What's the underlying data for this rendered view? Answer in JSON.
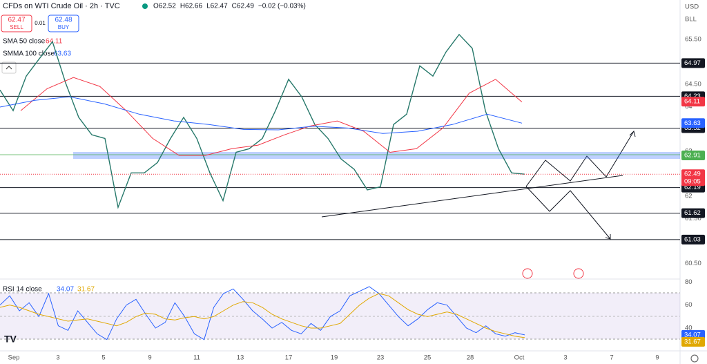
{
  "chart_data": {
    "type": "line",
    "title": "CFDs on WTI Crude Oil · 2h · TVC",
    "ohlc": [
      "O62.52",
      "H62.66",
      "L62.47",
      "C62.49",
      "−0.02 (−0.03%)"
    ],
    "sell": {
      "price": "62.47",
      "label": "SELL"
    },
    "buy": {
      "price": "62.48",
      "label": "BUY"
    },
    "spread": "0.01",
    "currency": "USD",
    "unit": "BLL",
    "ylim": [
      60.18,
      66.38
    ],
    "yticks": [
      {
        "value": 60.5,
        "label": "60.50"
      },
      {
        "value": 61.5,
        "label": "61.50"
      },
      62,
      63,
      64,
      {
        "value": 64.5,
        "label": "64.50"
      },
      {
        "value": 65.5,
        "label": "65.50"
      }
    ],
    "levels": [
      {
        "value": 64.97,
        "label": "64.97"
      },
      {
        "value": 64.23,
        "label": "64.23"
      },
      {
        "value": 63.52,
        "label": "63.52"
      },
      {
        "value": 62.19,
        "label": "62.19"
      },
      {
        "value": 61.62,
        "label": "61.62"
      },
      {
        "value": 61.03,
        "label": "61.03"
      }
    ],
    "zone": {
      "value": 62.91,
      "label": "62.91",
      "color": "#2962ff"
    },
    "last": {
      "value": 62.49,
      "label": "62.49",
      "countdown": "09:05",
      "color": "#f23645"
    },
    "price": {
      "color": "#26786a",
      "values": [
        64.37,
        63.91,
        64.68,
        65.07,
        65.45,
        64.53,
        63.76,
        63.37,
        63.29,
        61.75,
        62.52,
        62.52,
        62.75,
        63.29,
        63.76,
        63.29,
        62.52,
        61.9,
        62.98,
        63.06,
        63.29,
        63.91,
        64.61,
        64.22,
        63.6,
        63.29,
        62.83,
        62.6,
        62.14,
        62.21,
        63.6,
        63.83,
        64.91,
        64.68,
        65.22,
        65.61,
        65.3,
        63.91,
        63.06,
        62.52,
        62.49
      ]
    },
    "series": [
      {
        "name": "SMA 50 close",
        "color": "#f23645",
        "last": {
          "value": 64.11,
          "label": "64.11"
        },
        "values": [
          63.91,
          64.4,
          64.65,
          64.45,
          63.91,
          63.29,
          62.91,
          62.91,
          63.06,
          63.14,
          63.37,
          63.57,
          63.68,
          63.45,
          62.98,
          63.06,
          63.52,
          64.3,
          64.61,
          64.1
        ]
      },
      {
        "name": "SMMA 100 close",
        "color": "#2962ff",
        "last": {
          "value": 63.63,
          "label": "63.63"
        },
        "values": [
          63.99,
          64.14,
          64.22,
          64.06,
          63.83,
          63.68,
          63.6,
          63.49,
          63.48,
          63.56,
          63.52,
          63.4,
          63.45,
          63.6,
          63.83,
          63.63
        ]
      }
    ],
    "rsi": {
      "name": "RSI 14 close",
      "ylim": [
        22,
        82
      ],
      "yticks": [
        40,
        60,
        80
      ],
      "series": [
        {
          "color": "#2962ff",
          "last": {
            "value": 34.07,
            "label": "34.07"
          },
          "values": [
            60,
            68,
            55,
            62,
            50,
            70,
            42,
            38,
            55,
            45,
            35,
            30,
            48,
            60,
            65,
            52,
            40,
            45,
            62,
            50,
            35,
            30,
            58,
            70,
            74,
            65,
            55,
            48,
            40,
            45,
            38,
            35,
            44,
            38,
            50,
            55,
            68,
            72,
            76,
            70,
            60,
            50,
            42,
            48,
            56,
            62,
            60,
            50,
            40,
            36,
            42,
            35,
            33,
            36,
            34.07
          ]
        },
        {
          "color": "#e0a800",
          "last": {
            "value": 31.67,
            "label": "31.67"
          },
          "values": [
            58,
            60,
            58,
            55,
            52,
            50,
            48,
            46,
            47,
            48,
            46,
            44,
            42,
            45,
            50,
            53,
            52,
            48,
            47,
            49,
            50,
            48,
            50,
            55,
            60,
            63,
            62,
            58,
            52,
            48,
            45,
            42,
            40,
            40,
            42,
            44,
            52,
            60,
            66,
            70,
            68,
            62,
            56,
            52,
            50,
            52,
            54,
            52,
            48,
            44,
            40,
            37,
            35,
            33,
            31.67
          ]
        }
      ]
    },
    "xlabels": [
      "Sep",
      "3",
      "5",
      "9",
      "11",
      "13",
      "17",
      "19",
      "23",
      "25",
      "28",
      "Oct",
      "3",
      "7",
      "9"
    ]
  }
}
